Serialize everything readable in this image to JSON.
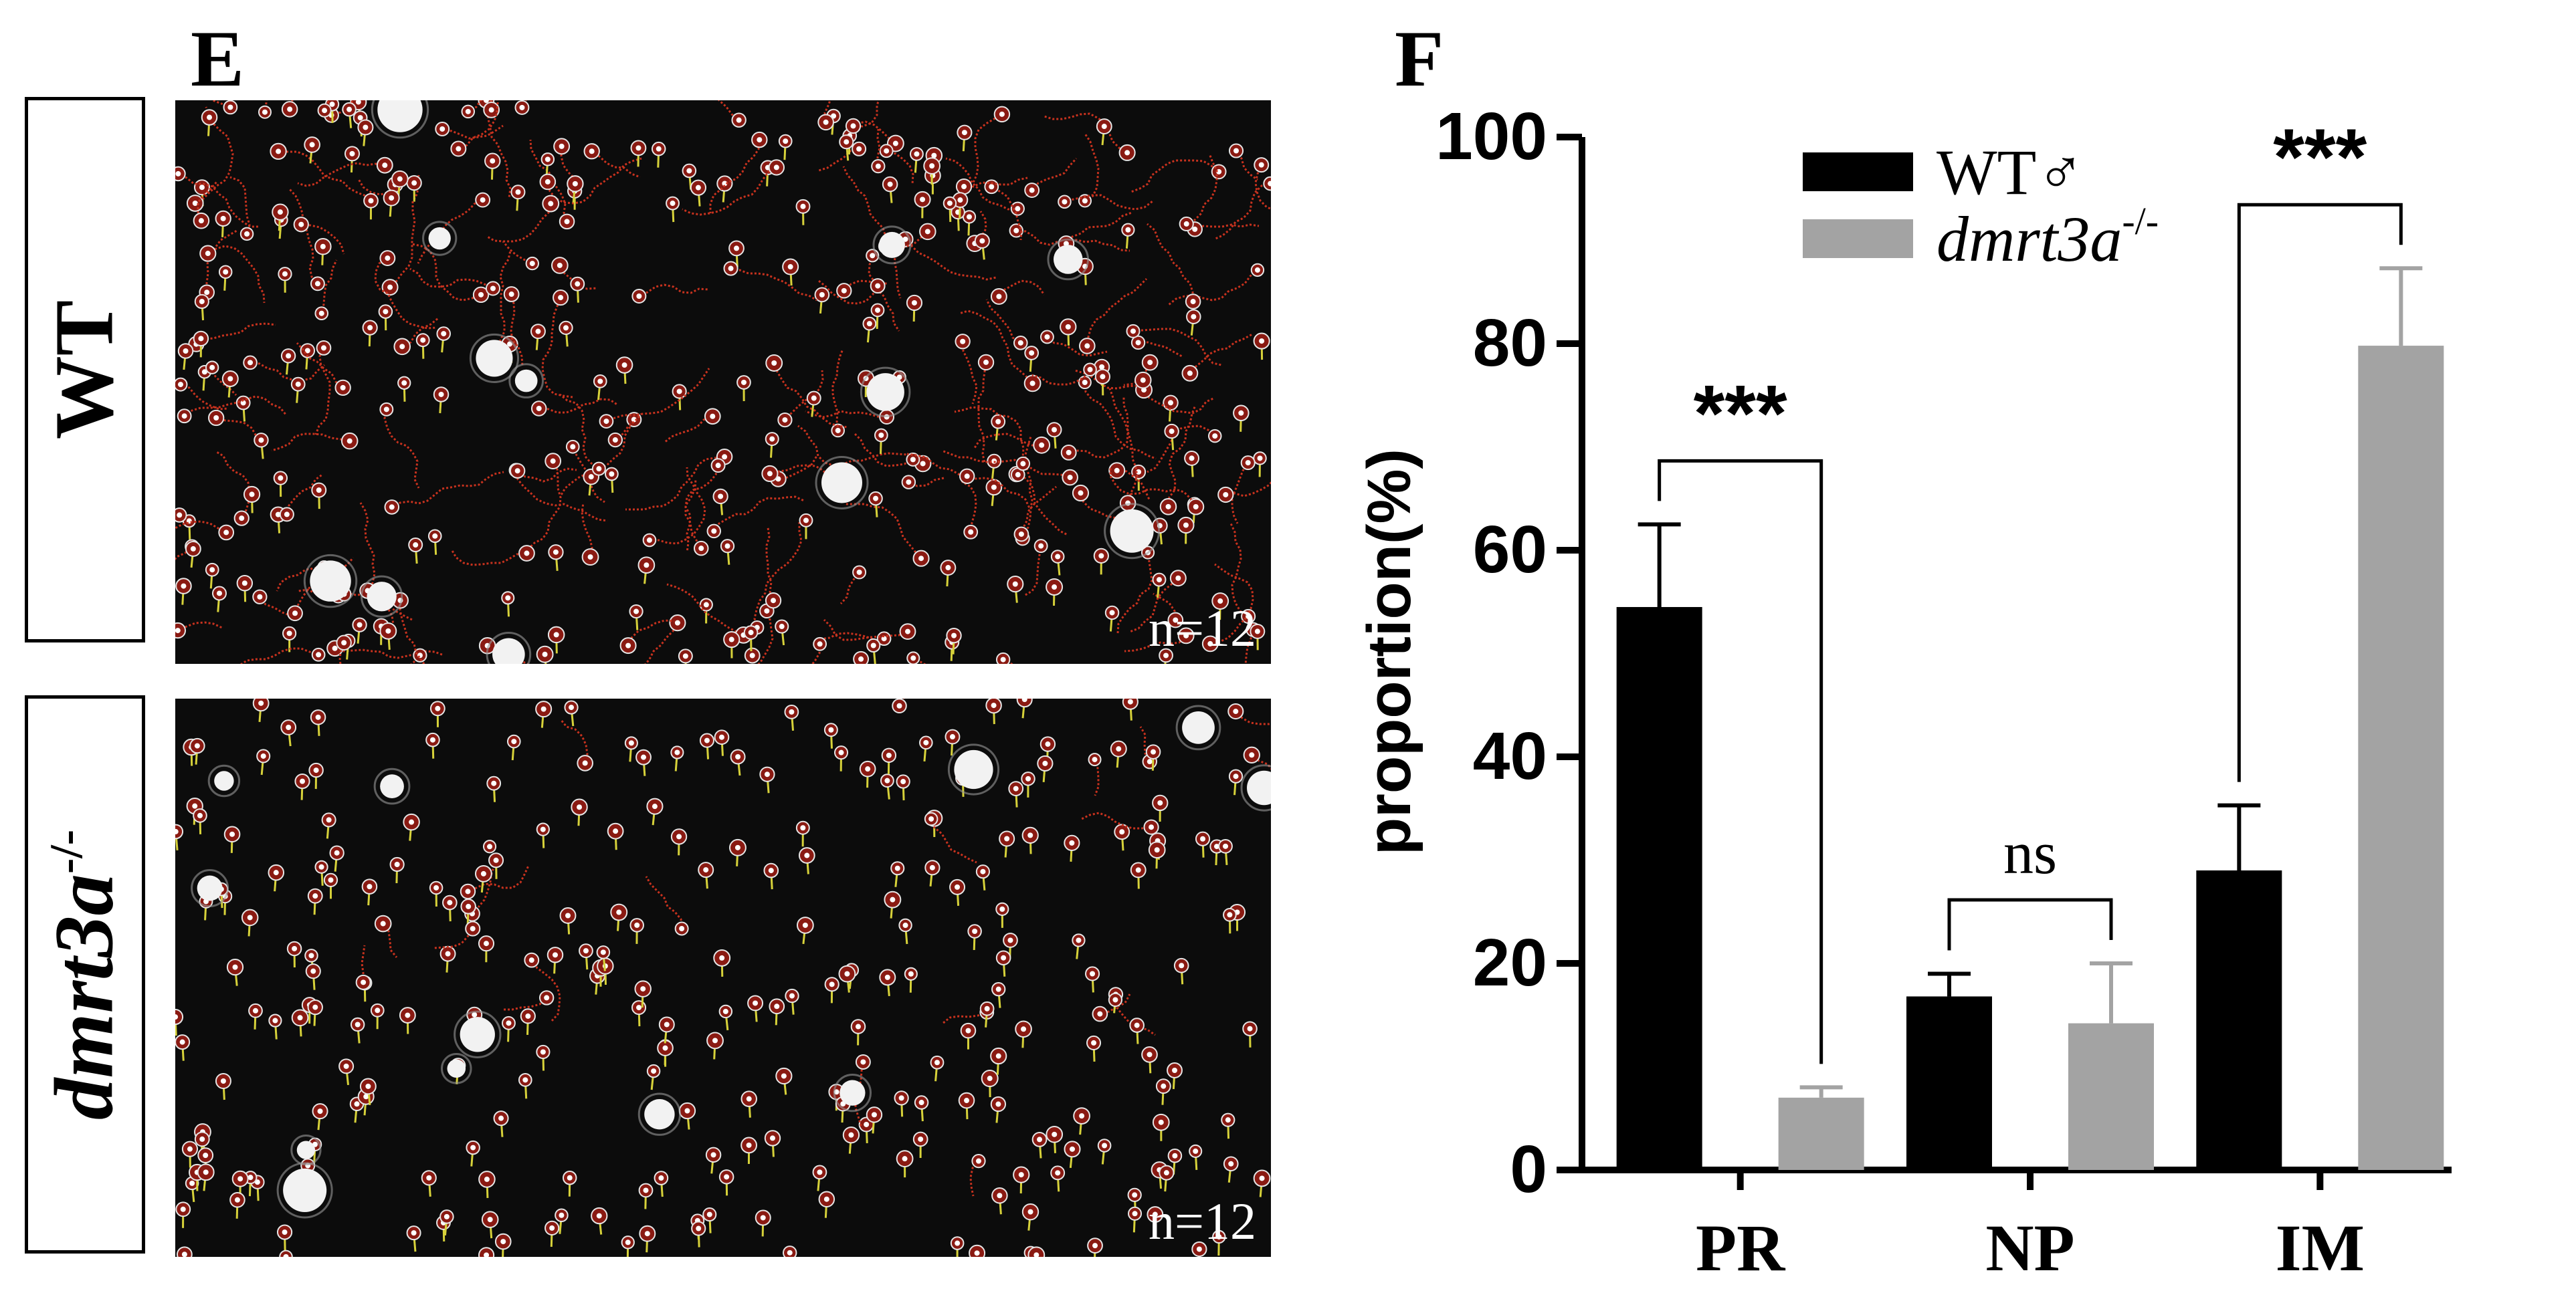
{
  "panels": {
    "left_letter": "E",
    "right_letter": "F"
  },
  "micrographs": [
    {
      "row_label": "WT",
      "n_text": "n=12"
    },
    {
      "row_label": "dmrt3a",
      "row_label_sup": "-/-",
      "n_text": "n=12"
    }
  ],
  "chart_data": {
    "type": "bar",
    "categories": [
      "PR",
      "NP",
      "IM"
    ],
    "series": [
      {
        "name": "WT♂",
        "color": "#000000",
        "values": [
          54.5,
          16.8,
          29.0
        ],
        "errors": [
          8.0,
          2.2,
          6.3
        ]
      },
      {
        "name": "dmrt3a",
        "name_sup": "-/-",
        "italic": true,
        "color": "#a3a3a3",
        "values": [
          7.0,
          14.2,
          79.8
        ],
        "errors": [
          1.0,
          5.8,
          7.5
        ]
      }
    ],
    "ylabel": "proportion(%)",
    "ylim": [
      0,
      100
    ],
    "yticks": [
      "0",
      "20",
      "40",
      "60",
      "80",
      "100"
    ],
    "significance": [
      "***",
      "ns",
      "***"
    ],
    "grid": false,
    "legend": "top-center"
  }
}
